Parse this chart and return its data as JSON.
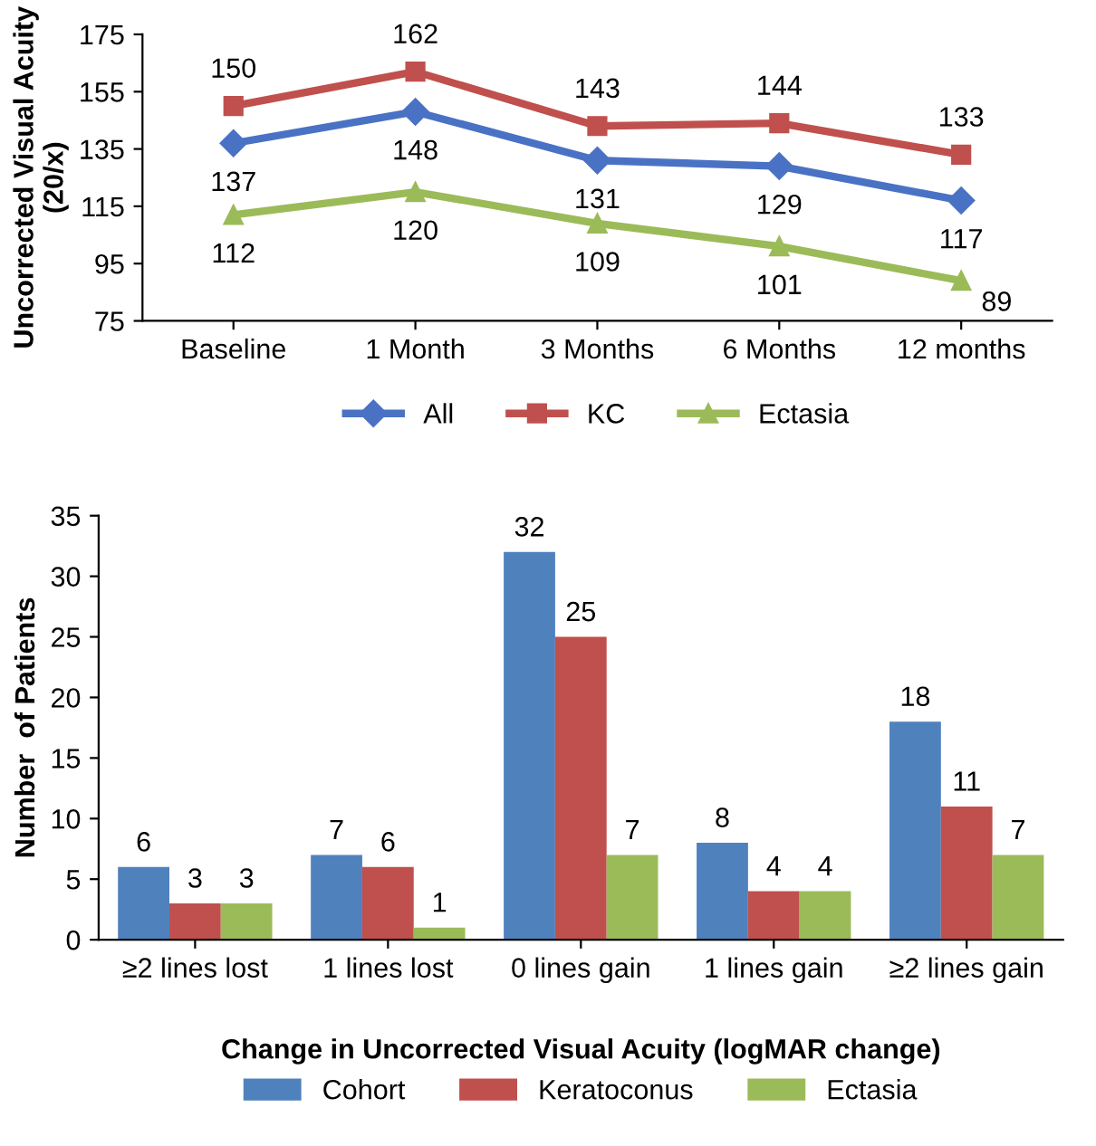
{
  "chart_data": [
    {
      "type": "line",
      "ylabel": "Uncorrected Visual Acuity\n(20/x)",
      "categories": [
        "Baseline",
        "1 Month",
        "3 Months",
        "6 Months",
        "12 months"
      ],
      "series": [
        {
          "name": "All",
          "color": "#4a72c4",
          "marker": "diamond",
          "values": [
            137,
            148,
            131,
            129,
            117
          ]
        },
        {
          "name": "KC",
          "color": "#c0504d",
          "marker": "square",
          "values": [
            150,
            162,
            143,
            144,
            133
          ]
        },
        {
          "name": "Ectasia",
          "color": "#9bbb59",
          "marker": "triangle",
          "values": [
            112,
            120,
            109,
            101,
            89
          ]
        }
      ],
      "ylim": [
        75,
        175
      ],
      "yticks": [
        75,
        95,
        115,
        135,
        155,
        175
      ],
      "data_labels": true,
      "legend": "bottom",
      "grid": false
    },
    {
      "type": "bar",
      "ylabel": "Number  of Patients",
      "xlabel": "Change in Uncorrected Visual Acuity (logMAR change)",
      "categories": [
        "≥2 lines lost",
        "1 lines lost",
        "0 lines gain",
        "1 lines gain",
        "≥2 lines gain"
      ],
      "series": [
        {
          "name": "Cohort",
          "color": "#4f81bd",
          "values": [
            6,
            7,
            32,
            8,
            18
          ]
        },
        {
          "name": "Keratoconus",
          "color": "#c0504d",
          "values": [
            3,
            6,
            25,
            4,
            11
          ]
        },
        {
          "name": "Ectasia",
          "color": "#9bbb59",
          "values": [
            3,
            1,
            7,
            4,
            7
          ]
        }
      ],
      "ylim": [
        0,
        35
      ],
      "yticks": [
        0,
        5,
        10,
        15,
        20,
        25,
        30,
        35
      ],
      "data_labels": true,
      "legend": "bottom",
      "grid": false
    }
  ]
}
